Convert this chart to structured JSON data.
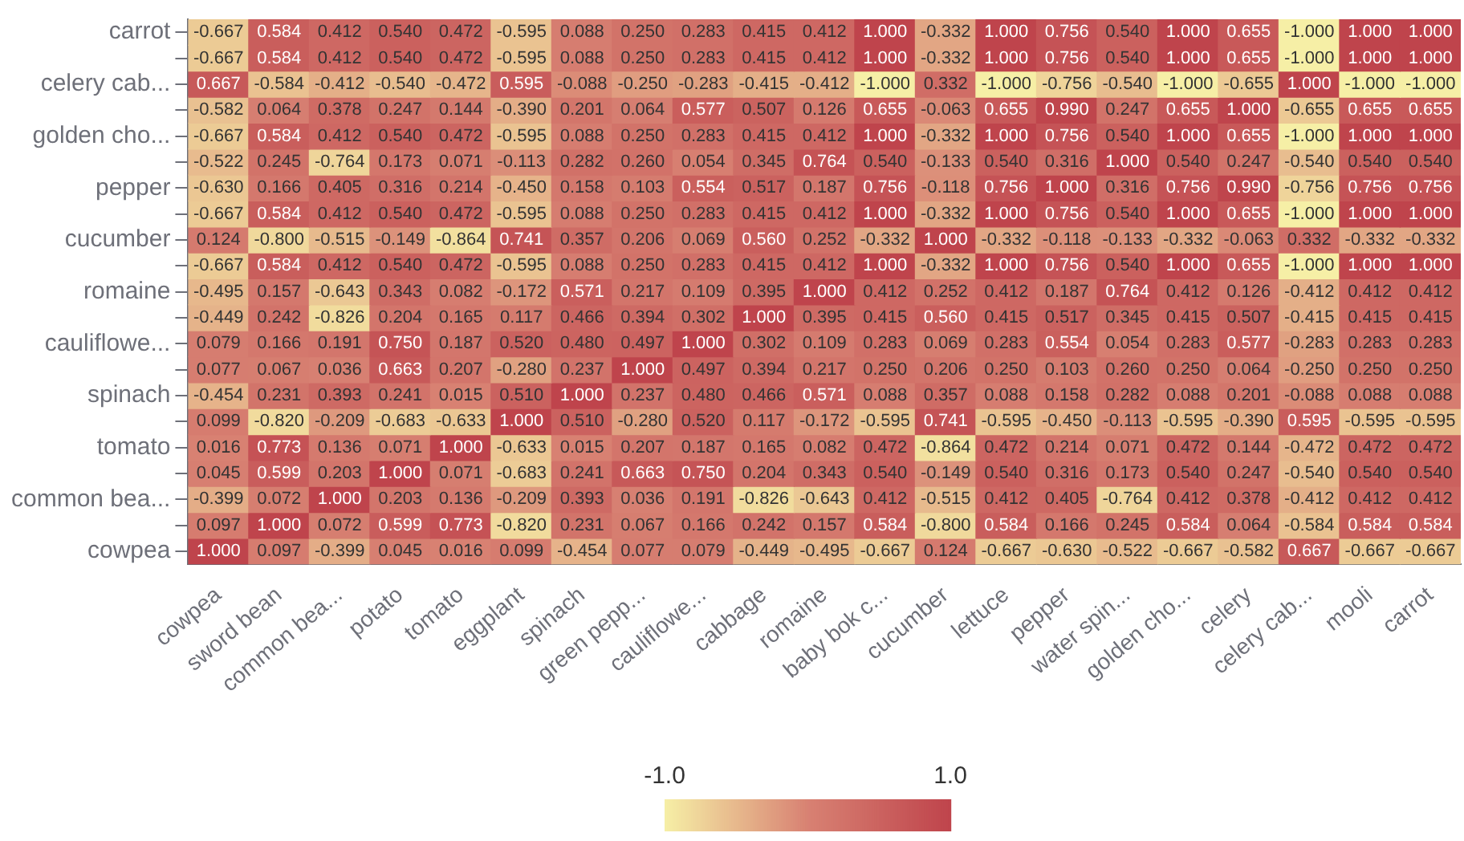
{
  "chart_data": {
    "type": "heatmap",
    "categories": [
      "cowpea",
      "sword bean",
      "common bea...",
      "potato",
      "tomato",
      "eggplant",
      "spinach",
      "green pepp...",
      "cauliflowe...",
      "cabbage",
      "romaine",
      "baby bok c...",
      "cucumber",
      "lettuce",
      "pepper",
      "water spin...",
      "golden cho...",
      "celery",
      "celery cab...",
      "mooli",
      "carrot"
    ],
    "y_categories": [
      "carrot",
      null,
      "celery cab...",
      null,
      "golden cho...",
      null,
      "pepper",
      null,
      "cucumber",
      null,
      "romaine",
      null,
      "cauliflowe...",
      null,
      "spinach",
      null,
      "tomato",
      null,
      "common bea...",
      null,
      "cowpea"
    ],
    "cells": [
      [
        -0.667,
        0.584,
        0.412,
        0.54,
        0.472,
        -0.595,
        0.088,
        0.25,
        0.283,
        0.415,
        0.412,
        1.0,
        -0.332,
        1.0,
        0.756,
        0.54,
        1.0,
        0.655,
        -1.0,
        1.0,
        1.0
      ],
      [
        -0.667,
        0.584,
        0.412,
        0.54,
        0.472,
        -0.595,
        0.088,
        0.25,
        0.283,
        0.415,
        0.412,
        1.0,
        -0.332,
        1.0,
        0.756,
        0.54,
        1.0,
        0.655,
        -1.0,
        1.0,
        1.0
      ],
      [
        0.667,
        -0.584,
        -0.412,
        -0.54,
        -0.472,
        0.595,
        -0.088,
        -0.25,
        -0.283,
        -0.415,
        -0.412,
        -1.0,
        0.332,
        -1.0,
        -0.756,
        -0.54,
        -1.0,
        -0.655,
        1.0,
        -1.0,
        -1.0
      ],
      [
        -0.582,
        0.064,
        0.378,
        0.247,
        0.144,
        -0.39,
        0.201,
        0.064,
        0.577,
        0.507,
        0.126,
        0.655,
        -0.063,
        0.655,
        0.99,
        0.247,
        0.655,
        1.0,
        -0.655,
        0.655,
        0.655
      ],
      [
        -0.667,
        0.584,
        0.412,
        0.54,
        0.472,
        -0.595,
        0.088,
        0.25,
        0.283,
        0.415,
        0.412,
        1.0,
        -0.332,
        1.0,
        0.756,
        0.54,
        1.0,
        0.655,
        -1.0,
        1.0,
        1.0
      ],
      [
        -0.522,
        0.245,
        -0.764,
        0.173,
        0.071,
        -0.113,
        0.282,
        0.26,
        0.054,
        0.345,
        0.764,
        0.54,
        -0.133,
        0.54,
        0.316,
        1.0,
        0.54,
        0.247,
        -0.54,
        0.54,
        0.54
      ],
      [
        -0.63,
        0.166,
        0.405,
        0.316,
        0.214,
        -0.45,
        0.158,
        0.103,
        0.554,
        0.517,
        0.187,
        0.756,
        -0.118,
        0.756,
        1.0,
        0.316,
        0.756,
        0.99,
        -0.756,
        0.756,
        0.756
      ],
      [
        -0.667,
        0.584,
        0.412,
        0.54,
        0.472,
        -0.595,
        0.088,
        0.25,
        0.283,
        0.415,
        0.412,
        1.0,
        -0.332,
        1.0,
        0.756,
        0.54,
        1.0,
        0.655,
        -1.0,
        1.0,
        1.0
      ],
      [
        0.124,
        -0.8,
        -0.515,
        -0.149,
        -0.864,
        0.741,
        0.357,
        0.206,
        0.069,
        0.56,
        0.252,
        -0.332,
        1.0,
        -0.332,
        -0.118,
        -0.133,
        -0.332,
        -0.063,
        0.332,
        -0.332,
        -0.332
      ],
      [
        -0.667,
        0.584,
        0.412,
        0.54,
        0.472,
        -0.595,
        0.088,
        0.25,
        0.283,
        0.415,
        0.412,
        1.0,
        -0.332,
        1.0,
        0.756,
        0.54,
        1.0,
        0.655,
        -1.0,
        1.0,
        1.0
      ],
      [
        -0.495,
        0.157,
        -0.643,
        0.343,
        0.082,
        -0.172,
        0.571,
        0.217,
        0.109,
        0.395,
        1.0,
        0.412,
        0.252,
        0.412,
        0.187,
        0.764,
        0.412,
        0.126,
        -0.412,
        0.412,
        0.412
      ],
      [
        -0.449,
        0.242,
        -0.826,
        0.204,
        0.165,
        0.117,
        0.466,
        0.394,
        0.302,
        1.0,
        0.395,
        0.415,
        0.56,
        0.415,
        0.517,
        0.345,
        0.415,
        0.507,
        -0.415,
        0.415,
        0.415
      ],
      [
        0.079,
        0.166,
        0.191,
        0.75,
        0.187,
        0.52,
        0.48,
        0.497,
        1.0,
        0.302,
        0.109,
        0.283,
        0.069,
        0.283,
        0.554,
        0.054,
        0.283,
        0.577,
        -0.283,
        0.283,
        0.283
      ],
      [
        0.077,
        0.067,
        0.036,
        0.663,
        0.207,
        -0.28,
        0.237,
        1.0,
        0.497,
        0.394,
        0.217,
        0.25,
        0.206,
        0.25,
        0.103,
        0.26,
        0.25,
        0.064,
        -0.25,
        0.25,
        0.25
      ],
      [
        -0.454,
        0.231,
        0.393,
        0.241,
        0.015,
        0.51,
        1.0,
        0.237,
        0.48,
        0.466,
        0.571,
        0.088,
        0.357,
        0.088,
        0.158,
        0.282,
        0.088,
        0.201,
        -0.088,
        0.088,
        0.088
      ],
      [
        0.099,
        -0.82,
        -0.209,
        -0.683,
        -0.633,
        1.0,
        0.51,
        -0.28,
        0.52,
        0.117,
        -0.172,
        -0.595,
        0.741,
        -0.595,
        -0.45,
        -0.113,
        -0.595,
        -0.39,
        0.595,
        -0.595,
        -0.595
      ],
      [
        0.016,
        0.773,
        0.136,
        0.071,
        1.0,
        -0.633,
        0.015,
        0.207,
        0.187,
        0.165,
        0.082,
        0.472,
        -0.864,
        0.472,
        0.214,
        0.071,
        0.472,
        0.144,
        -0.472,
        0.472,
        0.472
      ],
      [
        0.045,
        0.599,
        0.203,
        1.0,
        0.071,
        -0.683,
        0.241,
        0.663,
        0.75,
        0.204,
        0.343,
        0.54,
        -0.149,
        0.54,
        0.316,
        0.173,
        0.54,
        0.247,
        -0.54,
        0.54,
        0.54
      ],
      [
        -0.399,
        0.072,
        1.0,
        0.203,
        0.136,
        -0.209,
        0.393,
        0.036,
        0.191,
        -0.826,
        -0.643,
        0.412,
        -0.515,
        0.412,
        0.405,
        -0.764,
        0.412,
        0.378,
        -0.412,
        0.412,
        0.412
      ],
      [
        0.097,
        1.0,
        0.072,
        0.599,
        0.773,
        -0.82,
        0.231,
        0.067,
        0.166,
        0.242,
        0.157,
        0.584,
        -0.8,
        0.584,
        0.166,
        0.245,
        0.584,
        0.064,
        -0.584,
        0.584,
        0.584
      ],
      [
        1.0,
        0.097,
        -0.399,
        0.045,
        0.016,
        0.099,
        -0.454,
        0.077,
        0.079,
        -0.449,
        -0.495,
        -0.667,
        0.124,
        -0.667,
        -0.63,
        -0.522,
        -0.667,
        -0.582,
        0.667,
        -0.667,
        -0.667
      ]
    ],
    "cell_labels": [
      [
        "-0.667",
        "0.584",
        "0.412",
        "0.540",
        "0.472",
        "-0.595",
        "0.088",
        "0.250",
        "0.283",
        "0.415",
        "0.412",
        "1.000",
        "-0.332",
        "1.000",
        "0.756",
        "0.540",
        "1.000",
        "0.655",
        "-1.000",
        "1.000",
        "1.000"
      ],
      [
        "-0.667",
        "0.584",
        "0.412",
        "0.540",
        "0.472",
        "-0.595",
        "0.088",
        "0.250",
        "0.283",
        "0.415",
        "0.412",
        "1.000",
        "-0.332",
        "1.000",
        "0.756",
        "0.540",
        "1.000",
        "0.655",
        "-1.000",
        "1.000",
        "1.000"
      ],
      [
        "0.667",
        "-0.584",
        "-0.412",
        "-0.540",
        "-0.472",
        "0.595",
        "-0.088",
        "-0.250",
        "-0.283",
        "-0.415",
        "-0.412",
        "-1.000",
        "0.332",
        "-1.000",
        "-0.756",
        "-0.540",
        "-1.000",
        "-0.655",
        "1.000",
        "-1.000",
        "-1.000"
      ],
      [
        "-0.582",
        "0.064",
        "0.378",
        "0.247",
        "0.144",
        "-0.390",
        "0.201",
        "0.064",
        "0.577",
        "0.507",
        "0.126",
        "0.655",
        "-0.063",
        "0.655",
        "0.990",
        "0.247",
        "0.655",
        "1.000",
        "-0.655",
        "0.655",
        "0.655"
      ],
      [
        "-0.667",
        "0.584",
        "0.412",
        "0.540",
        "0.472",
        "-0.595",
        "0.088",
        "0.250",
        "0.283",
        "0.415",
        "0.412",
        "1.000",
        "-0.332",
        "1.000",
        "0.756",
        "0.540",
        "1.000",
        "0.655",
        "-1.000",
        "1.000",
        "1.000"
      ],
      [
        "-0.522",
        "0.245",
        "-0.764",
        "0.173",
        "0.071",
        "-0.113",
        "0.282",
        "0.260",
        "0.054",
        "0.345",
        "0.764",
        "0.540",
        "-0.133",
        "0.540",
        "0.316",
        "1.000",
        "0.540",
        "0.247",
        "-0.540",
        "0.540",
        "0.540"
      ],
      [
        "-0.630",
        "0.166",
        "0.405",
        "0.316",
        "0.214",
        "-0.450",
        "0.158",
        "0.103",
        "0.554",
        "0.517",
        "0.187",
        "0.756",
        "-0.118",
        "0.756",
        "1.000",
        "0.316",
        "0.756",
        "0.990",
        "-0.756",
        "0.756",
        "0.756"
      ],
      [
        "-0.667",
        "0.584",
        "0.412",
        "0.540",
        "0.472",
        "-0.595",
        "0.088",
        "0.250",
        "0.283",
        "0.415",
        "0.412",
        "1.000",
        "-0.332",
        "1.000",
        "0.756",
        "0.540",
        "1.000",
        "0.655",
        "-1.000",
        "1.000",
        "1.000"
      ],
      [
        "0.124",
        "-0.800",
        "-0.515",
        "-0.149",
        "-0.864",
        "0.741",
        "0.357",
        "0.206",
        "0.069",
        "0.560",
        "0.252",
        "-0.332",
        "1.000",
        "-0.332",
        "-0.118",
        "-0.133",
        "-0.332",
        "-0.063",
        "0.332",
        "-0.332",
        "-0.332"
      ],
      [
        "-0.667",
        "0.584",
        "0.412",
        "0.540",
        "0.472",
        "-0.595",
        "0.088",
        "0.250",
        "0.283",
        "0.415",
        "0.412",
        "1.000",
        "-0.332",
        "1.000",
        "0.756",
        "0.540",
        "1.000",
        "0.655",
        "-1.000",
        "1.000",
        "1.000"
      ],
      [
        "-0.495",
        "0.157",
        "-0.643",
        "0.343",
        "0.082",
        "-0.172",
        "0.571",
        "0.217",
        "0.109",
        "0.395",
        "1.000",
        "0.412",
        "0.252",
        "0.412",
        "0.187",
        "0.764",
        "0.412",
        "0.126",
        "-0.412",
        "0.412",
        "0.412"
      ],
      [
        "-0.449",
        "0.242",
        "-0.826",
        "0.204",
        "0.165",
        "0.117",
        "0.466",
        "0.394",
        "0.302",
        "1.000",
        "0.395",
        "0.415",
        "0.560",
        "0.415",
        "0.517",
        "0.345",
        "0.415",
        "0.507",
        "-0.415",
        "0.415",
        "0.415"
      ],
      [
        "0.079",
        "0.166",
        "0.191",
        "0.750",
        "0.187",
        "0.520",
        "0.480",
        "0.497",
        "1.000",
        "0.302",
        "0.109",
        "0.283",
        "0.069",
        "0.283",
        "0.554",
        "0.054",
        "0.283",
        "0.577",
        "-0.283",
        "0.283",
        "0.283"
      ],
      [
        "0.077",
        "0.067",
        "0.036",
        "0.663",
        "0.207",
        "-0.280",
        "0.237",
        "1.000",
        "0.497",
        "0.394",
        "0.217",
        "0.250",
        "0.206",
        "0.250",
        "0.103",
        "0.260",
        "0.250",
        "0.064",
        "-0.250",
        "0.250",
        "0.250"
      ],
      [
        "-0.454",
        "0.231",
        "0.393",
        "0.241",
        "0.015",
        "0.510",
        "1.000",
        "0.237",
        "0.480",
        "0.466",
        "0.571",
        "0.088",
        "0.357",
        "0.088",
        "0.158",
        "0.282",
        "0.088",
        "0.201",
        "-0.088",
        "0.088",
        "0.088"
      ],
      [
        "0.099",
        "-0.820",
        "-0.209",
        "-0.683",
        "-0.633",
        "1.000",
        "0.510",
        "-0.280",
        "0.520",
        "0.117",
        "-0.172",
        "-0.595",
        "0.741",
        "-0.595",
        "-0.450",
        "-0.113",
        "-0.595",
        "-0.390",
        "0.595",
        "-0.595",
        "-0.595"
      ],
      [
        "0.016",
        "0.773",
        "0.136",
        "0.071",
        "1.000",
        "-0.633",
        "0.015",
        "0.207",
        "0.187",
        "0.165",
        "0.082",
        "0.472",
        "-0.864",
        "0.472",
        "0.214",
        "0.071",
        "0.472",
        "0.144",
        "-0.472",
        "0.472",
        "0.472"
      ],
      [
        "0.045",
        "0.599",
        "0.203",
        "1.000",
        "0.071",
        "-0.683",
        "0.241",
        "0.663",
        "0.750",
        "0.204",
        "0.343",
        "0.540",
        "-0.149",
        "0.540",
        "0.316",
        "0.173",
        "0.540",
        "0.247",
        "-0.540",
        "0.540",
        "0.540"
      ],
      [
        "-0.399",
        "0.072",
        "1.000",
        "0.203",
        "0.136",
        "-0.209",
        "0.393",
        "0.036",
        "0.191",
        "-0.826",
        "-0.643",
        "0.412",
        "-0.515",
        "0.412",
        "0.405",
        "-0.764",
        "0.412",
        "0.378",
        "-0.412",
        "0.412",
        "0.412"
      ],
      [
        "0.097",
        "1.000",
        "0.072",
        "0.599",
        "0.773",
        "-0.820",
        "0.231",
        "0.067",
        "0.166",
        "0.242",
        "0.157",
        "0.584",
        "-0.800",
        "0.584",
        "0.166",
        "0.245",
        "0.584",
        "0.064",
        "-0.584",
        "0.584",
        "0.584"
      ],
      [
        "1.000",
        "0.097",
        "-0.399",
        "0.045",
        "0.016",
        "0.099",
        "-0.454",
        "0.077",
        "0.079",
        "-0.449",
        "-0.495",
        "-0.667",
        "0.124",
        "-0.667",
        "-0.630",
        "-0.522",
        "-0.667",
        "-0.582",
        "0.667",
        "-0.667",
        "-0.667"
      ]
    ],
    "clim": [
      -1,
      1
    ],
    "cticks": [
      {
        "value": -1,
        "label": "-1.0"
      },
      {
        "value": 1,
        "label": "1.0"
      }
    ],
    "colors": [
      "#f6efa6",
      "#d88273",
      "#bf444c"
    ]
  }
}
